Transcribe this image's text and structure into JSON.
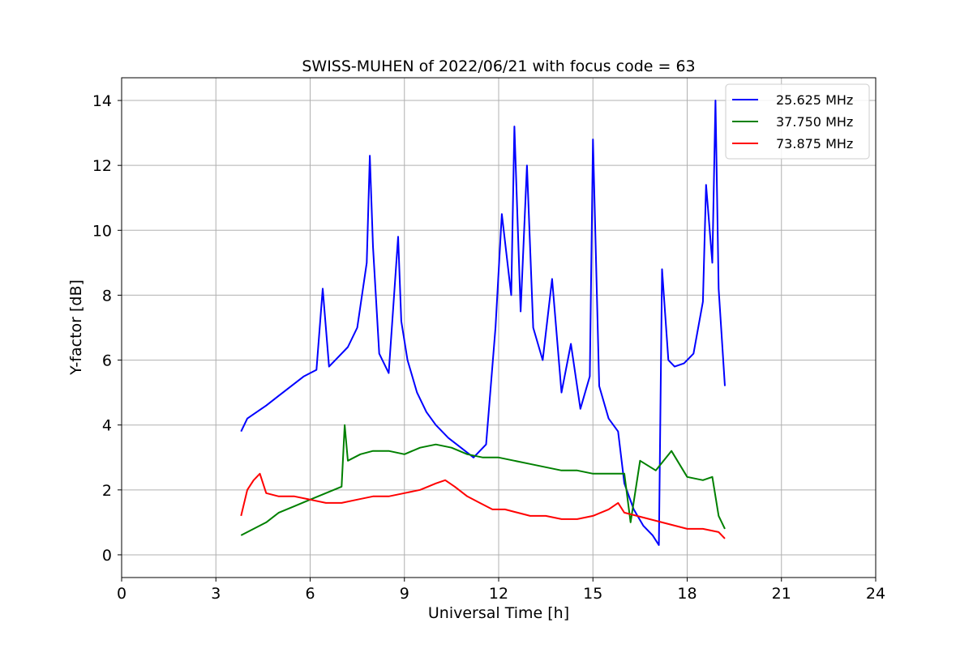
{
  "chart_data": {
    "type": "line",
    "title": "SWISS-MUHEN of 2022/06/21 with focus code = 63",
    "xlabel": "Universal Time [h]",
    "ylabel": "Y-factor [dB]",
    "xlim": [
      0,
      24
    ],
    "ylim": [
      -0.7,
      14.7
    ],
    "xticks": [
      0,
      3,
      6,
      9,
      12,
      15,
      18,
      21,
      24
    ],
    "yticks": [
      0,
      2,
      4,
      6,
      8,
      10,
      12,
      14
    ],
    "grid": true,
    "legend_position": "top-right",
    "series": [
      {
        "name": "25.625 MHz",
        "color": "#0000ff",
        "x": [
          3.8,
          4.0,
          4.3,
          4.6,
          5.0,
          5.4,
          5.8,
          6.2,
          6.4,
          6.6,
          6.9,
          7.2,
          7.5,
          7.8,
          7.9,
          8.0,
          8.2,
          8.5,
          8.8,
          8.9,
          9.1,
          9.4,
          9.7,
          10.0,
          10.4,
          10.8,
          11.2,
          11.6,
          11.9,
          12.1,
          12.4,
          12.5,
          12.7,
          12.9,
          13.1,
          13.4,
          13.7,
          14.0,
          14.3,
          14.6,
          14.9,
          15.0,
          15.2,
          15.5,
          15.8,
          16.0,
          16.3,
          16.6,
          16.9,
          17.1,
          17.2,
          17.4,
          17.6,
          17.9,
          18.2,
          18.5,
          18.6,
          18.8,
          18.9,
          19.0,
          19.2
        ],
        "y": [
          3.8,
          4.2,
          4.4,
          4.6,
          4.9,
          5.2,
          5.5,
          5.7,
          8.2,
          5.8,
          6.1,
          6.4,
          7.0,
          9.0,
          12.3,
          9.5,
          6.2,
          5.6,
          9.8,
          7.2,
          6.0,
          5.0,
          4.4,
          4.0,
          3.6,
          3.3,
          3.0,
          3.4,
          7.0,
          10.5,
          8.0,
          13.2,
          7.5,
          12.0,
          7.0,
          6.0,
          8.5,
          5.0,
          6.5,
          4.5,
          5.5,
          12.8,
          5.2,
          4.2,
          3.8,
          2.2,
          1.4,
          0.9,
          0.6,
          0.3,
          8.8,
          6.0,
          5.8,
          5.9,
          6.2,
          7.8,
          11.4,
          9.0,
          14.0,
          8.2,
          5.2
        ]
      },
      {
        "name": "37.750 MHz",
        "color": "#008000",
        "x": [
          3.8,
          4.2,
          4.6,
          5.0,
          5.5,
          6.0,
          6.5,
          7.0,
          7.1,
          7.2,
          7.6,
          8.0,
          8.5,
          9.0,
          9.5,
          10.0,
          10.5,
          11.0,
          11.5,
          12.0,
          12.5,
          13.0,
          13.5,
          14.0,
          14.5,
          15.0,
          15.5,
          16.0,
          16.2,
          16.5,
          17.0,
          17.5,
          18.0,
          18.5,
          18.8,
          19.0,
          19.2
        ],
        "y": [
          0.6,
          0.8,
          1.0,
          1.3,
          1.5,
          1.7,
          1.9,
          2.1,
          4.0,
          2.9,
          3.1,
          3.2,
          3.2,
          3.1,
          3.3,
          3.4,
          3.3,
          3.1,
          3.0,
          3.0,
          2.9,
          2.8,
          2.7,
          2.6,
          2.6,
          2.5,
          2.5,
          2.5,
          1.0,
          2.9,
          2.6,
          3.2,
          2.4,
          2.3,
          2.4,
          1.2,
          0.8
        ]
      },
      {
        "name": "73.875 MHz",
        "color": "#ff0000",
        "x": [
          3.8,
          4.0,
          4.2,
          4.4,
          4.6,
          5.0,
          5.5,
          6.0,
          6.5,
          7.0,
          7.5,
          8.0,
          8.5,
          9.0,
          9.5,
          10.0,
          10.3,
          10.6,
          11.0,
          11.4,
          11.8,
          12.2,
          12.6,
          13.0,
          13.5,
          14.0,
          14.5,
          15.0,
          15.5,
          15.8,
          16.0,
          16.4,
          16.8,
          17.2,
          17.6,
          18.0,
          18.5,
          19.0,
          19.2
        ],
        "y": [
          1.2,
          2.0,
          2.3,
          2.5,
          1.9,
          1.8,
          1.8,
          1.7,
          1.6,
          1.6,
          1.7,
          1.8,
          1.8,
          1.9,
          2.0,
          2.2,
          2.3,
          2.1,
          1.8,
          1.6,
          1.4,
          1.4,
          1.3,
          1.2,
          1.2,
          1.1,
          1.1,
          1.2,
          1.4,
          1.6,
          1.3,
          1.2,
          1.1,
          1.0,
          0.9,
          0.8,
          0.8,
          0.7,
          0.5
        ]
      }
    ]
  }
}
